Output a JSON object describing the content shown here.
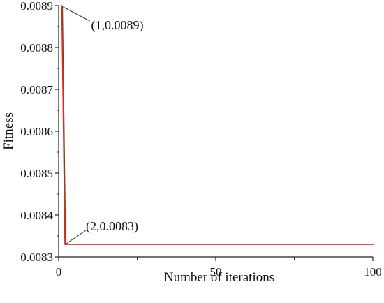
{
  "chart_data": {
    "type": "line",
    "title": "",
    "xlabel": "Number of iterations",
    "ylabel": "Fitness",
    "xlim": [
      0,
      100
    ],
    "ylim": [
      0.0083,
      0.0089
    ],
    "x_ticks": [
      0,
      50,
      100
    ],
    "x_tick_labels": [
      "0",
      "50",
      "100"
    ],
    "x_minor_ticks": [
      25,
      75
    ],
    "y_ticks": [
      0.0083,
      0.0084,
      0.0085,
      0.0086,
      0.0087,
      0.0088,
      0.0089
    ],
    "y_tick_labels": [
      "0.0083",
      "0.0084",
      "0.0085",
      "0.0086",
      "0.0087",
      "0.0088",
      "0.0089"
    ],
    "grid": false,
    "legend": "none",
    "series": [
      {
        "color": "#e8251f",
        "x": [
          1,
          2,
          100
        ],
        "y": [
          0.0089,
          0.00833,
          0.00833
        ]
      }
    ],
    "annotations": [
      {
        "text": "(1,0.0089)",
        "x": 1,
        "y": 0.0089
      },
      {
        "text": "(2,0.0083)",
        "x": 2,
        "y": 0.00833
      }
    ]
  }
}
